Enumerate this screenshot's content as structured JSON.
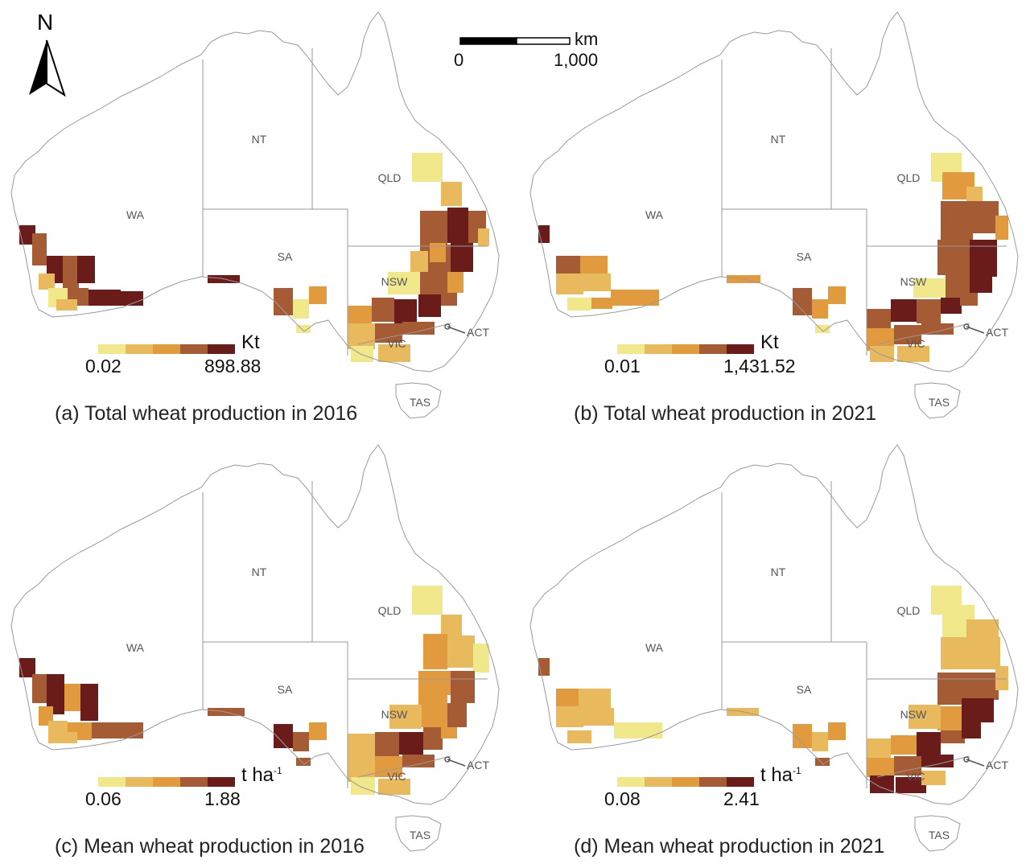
{
  "legend_colors": [
    "#f0e88a",
    "#e9b95d",
    "#e29a3f",
    "#a55b33",
    "#6a1c1a"
  ],
  "outline_color": "#9a9a9a",
  "compass": {
    "letter": "N"
  },
  "scale": {
    "unit": "km",
    "min_label": "0",
    "max_label": "1,000"
  },
  "panels": [
    {
      "caption": "(a) Total wheat production in 2016",
      "unit": "Kt",
      "unit_sup": "",
      "legend_min": "0.02",
      "legend_max": "898.88",
      "states": [
        "WA",
        "NT",
        "SA",
        "QLD",
        "NSW",
        "VIC",
        "TAS",
        "ACT"
      ]
    },
    {
      "caption": "(b) Total wheat production in 2021",
      "unit": "Kt",
      "unit_sup": "",
      "legend_min": "0.01",
      "legend_max": "1,431.52",
      "states": [
        "WA",
        "NT",
        "SA",
        "QLD",
        "NSW",
        "VIC",
        "TAS",
        "ACT"
      ]
    },
    {
      "caption": "(c) Mean wheat production in 2016",
      "unit": "t ha",
      "unit_sup": "-1",
      "legend_min": "0.06",
      "legend_max": "1.88",
      "states": [
        "WA",
        "NT",
        "SA",
        "QLD",
        "NSW",
        "VIC",
        "TAS",
        "ACT"
      ]
    },
    {
      "caption": "(d) Mean wheat production in 2021",
      "unit": "t ha",
      "unit_sup": "-1",
      "legend_min": "0.08",
      "legend_max": "2.41",
      "states": [
        "WA",
        "NT",
        "SA",
        "QLD",
        "NSW",
        "VIC",
        "TAS",
        "ACT"
      ]
    }
  ]
}
